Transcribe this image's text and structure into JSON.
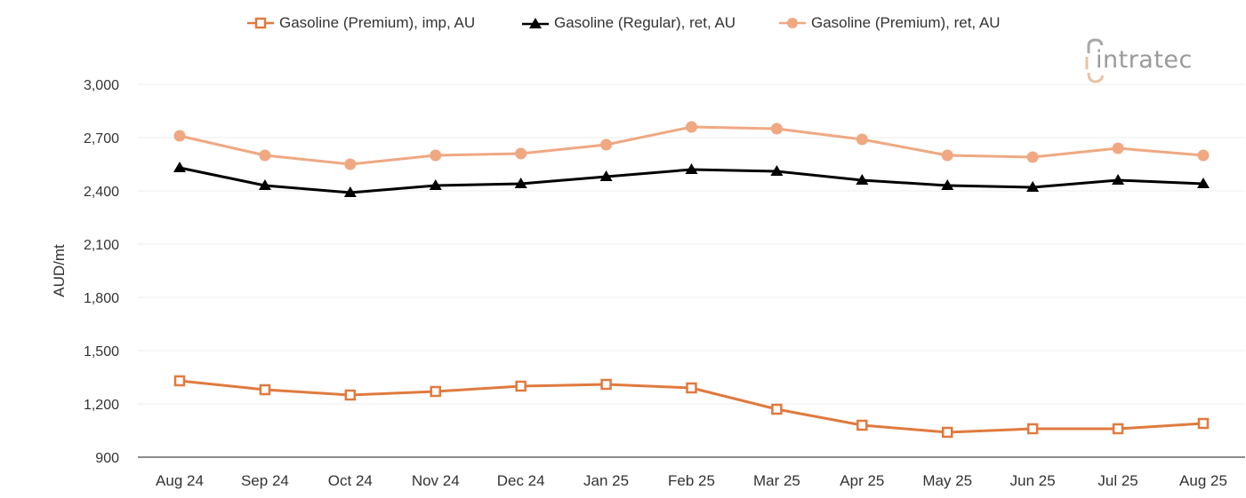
{
  "chart_data": {
    "type": "line",
    "title": "",
    "xlabel": "",
    "ylabel": "AUD/mt",
    "ylim": [
      900,
      3000
    ],
    "yticks": [
      900,
      1200,
      1500,
      1800,
      2100,
      2400,
      2700,
      3000
    ],
    "ytick_labels": [
      "900",
      "1,200",
      "1,500",
      "1,800",
      "2,100",
      "2,400",
      "2,700",
      "3,000"
    ],
    "grid": true,
    "legend_position": "top",
    "categories": [
      "Aug 24",
      "Sep 24",
      "Oct 24",
      "Nov 24",
      "Dec 24",
      "Jan 25",
      "Feb 25",
      "Mar 25",
      "Apr 25",
      "May 25",
      "Jun 25",
      "Jul 25",
      "Aug 25"
    ],
    "series": [
      {
        "name": "Gasoline (Premium), imp, AU",
        "color": "#E07A3F",
        "marker": "square-open",
        "values": [
          1330,
          1280,
          1250,
          1270,
          1300,
          1310,
          1290,
          1170,
          1080,
          1040,
          1060,
          1060,
          1090
        ]
      },
      {
        "name": "Gasoline (Regular), ret, AU",
        "color": "#000000",
        "marker": "triangle",
        "values": [
          2530,
          2430,
          2390,
          2430,
          2440,
          2480,
          2520,
          2510,
          2460,
          2430,
          2420,
          2460,
          2440
        ]
      },
      {
        "name": "Gasoline (Premium), ret, AU",
        "color": "#EFA882",
        "marker": "circle",
        "values": [
          2710,
          2600,
          2550,
          2600,
          2610,
          2660,
          2760,
          2750,
          2690,
          2600,
          2590,
          2640,
          2600
        ]
      }
    ]
  },
  "branding": {
    "logo_text": "intratec",
    "logo_primary_color": "#9a9a9a",
    "logo_accent_color": "#E8C3A4"
  }
}
